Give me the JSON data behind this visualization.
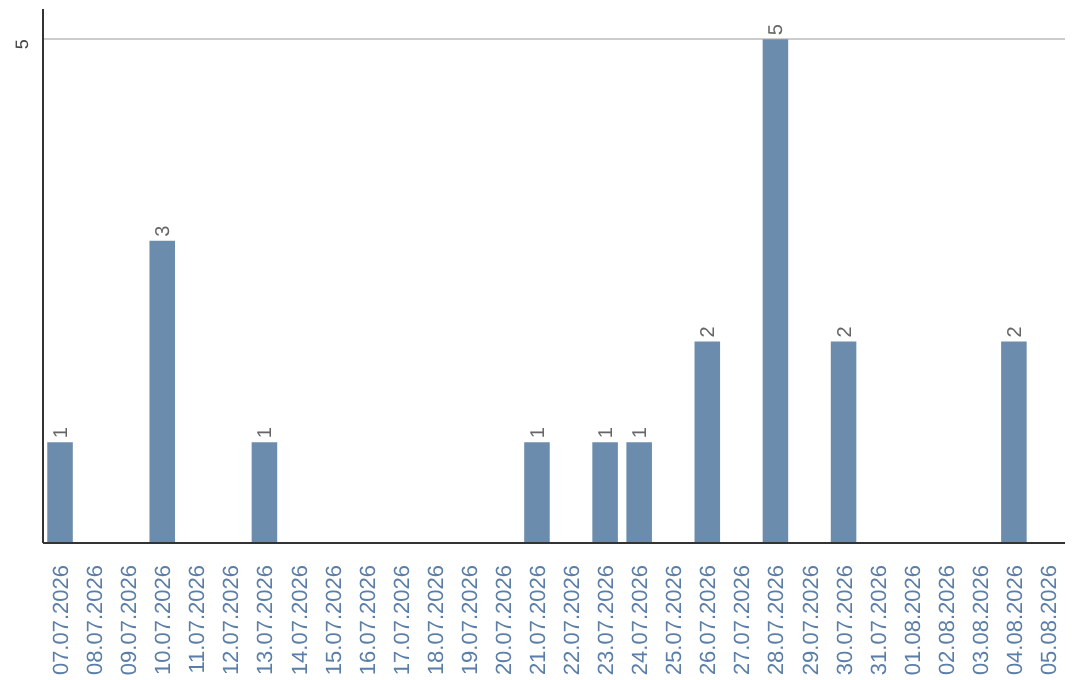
{
  "chart_data": {
    "type": "bar",
    "categories": [
      "07.07.2026",
      "08.07.2026",
      "09.07.2026",
      "10.07.2026",
      "11.07.2026",
      "12.07.2026",
      "13.07.2026",
      "14.07.2026",
      "15.07.2026",
      "16.07.2026",
      "17.07.2026",
      "18.07.2026",
      "19.07.2026",
      "20.07.2026",
      "21.07.2026",
      "22.07.2026",
      "23.07.2026",
      "24.07.2026",
      "25.07.2026",
      "26.07.2026",
      "27.07.2026",
      "28.07.2026",
      "29.07.2026",
      "30.07.2026",
      "31.07.2026",
      "01.08.2026",
      "02.08.2026",
      "03.08.2026",
      "04.08.2026",
      "05.08.2026"
    ],
    "values": [
      1,
      null,
      null,
      3,
      null,
      null,
      1,
      null,
      null,
      null,
      null,
      null,
      null,
      null,
      1,
      null,
      1,
      1,
      null,
      2,
      null,
      5,
      null,
      2,
      null,
      null,
      null,
      null,
      2,
      null
    ],
    "color": "#6b8cac",
    "ylim": [
      0,
      5.3
    ],
    "yticks": [
      5
    ],
    "grid": "y",
    "data_labels": true
  }
}
